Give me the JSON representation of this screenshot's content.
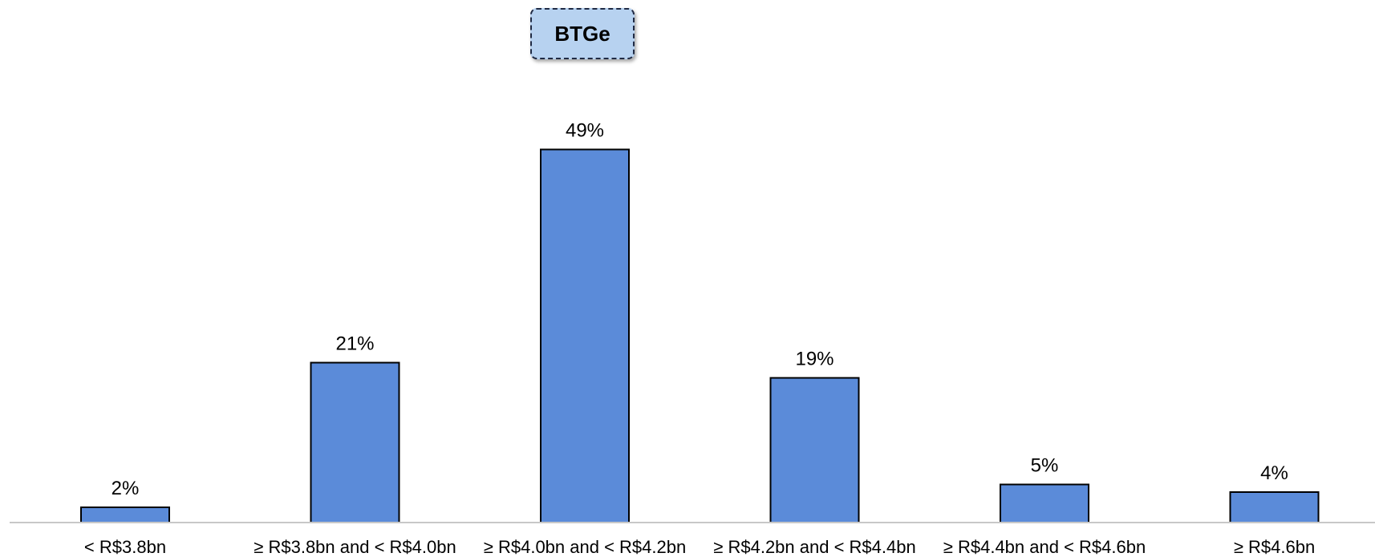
{
  "chart_data": {
    "type": "bar",
    "title": "BTGe",
    "categories": [
      "< R$3.8bn",
      "≥ R$3.8bn and < R$4.0bn",
      "≥ R$4.0bn and < R$4.2bn",
      "≥ R$4.2bn and < R$4.4bn",
      "≥ R$4.4bn and < R$4.6bn",
      "≥ R$4.6bn"
    ],
    "values": [
      2,
      21,
      49,
      19,
      5,
      4
    ],
    "data_labels": [
      "2%",
      "21%",
      "49%",
      "19%",
      "5%",
      "4%"
    ],
    "unit": "%",
    "ylim": [
      0,
      50
    ],
    "grid": false,
    "legend": "none",
    "colors": {
      "bar_fill": "#5b8bd9",
      "bar_stroke": "#000000",
      "baseline": "#c8c8c8",
      "title_fill": "#b7d2f0",
      "title_border": "#1f2a44"
    }
  }
}
